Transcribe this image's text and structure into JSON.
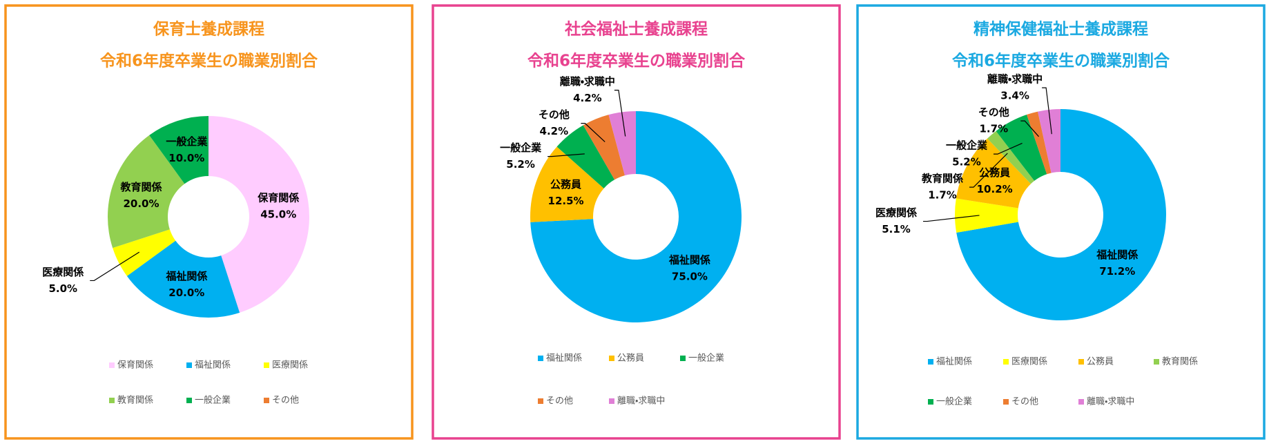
{
  "chart_data": [
    {
      "type": "pie",
      "title": "保育士養成課程",
      "subtitle": "令和6年度卒業生の職業別割合",
      "frame_color": "#f7941d",
      "legend": "bottom",
      "categories": [
        "保育関係",
        "福祉関係",
        "医療関係",
        "教育関係",
        "一般企業",
        "その他"
      ],
      "values": [
        45.0,
        20.0,
        5.0,
        20.0,
        10.0,
        0
      ],
      "value_labels": [
        "45.0%",
        "20.0%",
        "5.0%",
        "20.0%",
        "10.0%",
        null
      ],
      "colors": [
        "#ffccff",
        "#00b0f0",
        "#ffff00",
        "#92d050",
        "#00b050",
        "#ed7d31"
      ]
    },
    {
      "type": "pie",
      "title": "社会福祉士養成課程",
      "subtitle": "令和6年度卒業生の職業別割合",
      "frame_color": "#e8428f",
      "legend": "bottom",
      "categories": [
        "福祉関係",
        "公務員",
        "一般企業",
        "その他",
        "離職・求職中"
      ],
      "values": [
        75.0,
        12.5,
        5.2,
        4.2,
        4.2
      ],
      "value_labels": [
        "75.0%",
        "12.5%",
        "5.2%",
        "4.2%",
        "4.2%"
      ],
      "colors": [
        "#00b0f0",
        "#ffc000",
        "#00b050",
        "#ed7d31",
        "#e07fd6"
      ]
    },
    {
      "type": "pie",
      "title": "精神保健福祉士養成課程",
      "subtitle": "令和6年度卒業生の職業別割合",
      "frame_color": "#1ba9e1",
      "legend": "bottom",
      "categories": [
        "福祉関係",
        "医療関係",
        "公務員",
        "教育関係",
        "一般企業",
        "その他",
        "離職・求職中"
      ],
      "values": [
        71.2,
        5.1,
        10.2,
        1.7,
        5.2,
        1.7,
        3.4
      ],
      "value_labels": [
        "71.2%",
        "5.1%",
        "10.2%",
        "1.7%",
        "5.2%",
        "1.7%",
        "3.4%"
      ],
      "colors": [
        "#00b0f0",
        "#ffff00",
        "#ffc000",
        "#92d050",
        "#00b050",
        "#ed7d31",
        "#e07fd6"
      ]
    }
  ]
}
